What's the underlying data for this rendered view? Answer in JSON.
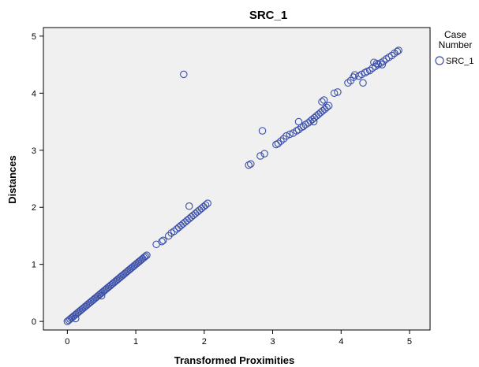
{
  "chart_data": {
    "type": "scatter",
    "title": "SRC_1",
    "xlabel": "Transformed Proximities",
    "ylabel": "Distances",
    "xlim": [
      -0.35,
      5.3
    ],
    "ylim": [
      -0.15,
      5.15
    ],
    "x_ticks": [
      0,
      1,
      2,
      3,
      4,
      5
    ],
    "y_ticks": [
      0,
      1,
      2,
      3,
      4,
      5
    ],
    "x_tick_labels": [
      "0",
      "1",
      "2",
      "3",
      "4",
      "5"
    ],
    "y_tick_labels": [
      "0",
      "1",
      "2",
      "3",
      "4",
      "5"
    ],
    "grid": false,
    "legend": {
      "title_lines": [
        "Case",
        "Number"
      ],
      "placement": "right",
      "entries": [
        "SRC_1"
      ]
    },
    "series": [
      {
        "name": "SRC_1",
        "color": "#3b4fa8",
        "marker": "open-circle",
        "points": [
          [
            0.0,
            0.0
          ],
          [
            0.02,
            0.02
          ],
          [
            0.04,
            0.04
          ],
          [
            0.06,
            0.06
          ],
          [
            0.08,
            0.08
          ],
          [
            0.1,
            0.1
          ],
          [
            0.12,
            0.12
          ],
          [
            0.14,
            0.14
          ],
          [
            0.16,
            0.16
          ],
          [
            0.18,
            0.18
          ],
          [
            0.2,
            0.2
          ],
          [
            0.22,
            0.22
          ],
          [
            0.24,
            0.24
          ],
          [
            0.26,
            0.26
          ],
          [
            0.28,
            0.28
          ],
          [
            0.3,
            0.3
          ],
          [
            0.32,
            0.32
          ],
          [
            0.34,
            0.34
          ],
          [
            0.36,
            0.36
          ],
          [
            0.38,
            0.38
          ],
          [
            0.4,
            0.4
          ],
          [
            0.42,
            0.42
          ],
          [
            0.44,
            0.44
          ],
          [
            0.46,
            0.46
          ],
          [
            0.48,
            0.48
          ],
          [
            0.5,
            0.5
          ],
          [
            0.52,
            0.52
          ],
          [
            0.54,
            0.54
          ],
          [
            0.56,
            0.56
          ],
          [
            0.58,
            0.58
          ],
          [
            0.6,
            0.6
          ],
          [
            0.62,
            0.62
          ],
          [
            0.64,
            0.64
          ],
          [
            0.66,
            0.66
          ],
          [
            0.68,
            0.68
          ],
          [
            0.7,
            0.7
          ],
          [
            0.72,
            0.72
          ],
          [
            0.74,
            0.74
          ],
          [
            0.76,
            0.76
          ],
          [
            0.78,
            0.78
          ],
          [
            0.8,
            0.8
          ],
          [
            0.82,
            0.82
          ],
          [
            0.84,
            0.84
          ],
          [
            0.86,
            0.86
          ],
          [
            0.88,
            0.88
          ],
          [
            0.9,
            0.9
          ],
          [
            0.92,
            0.92
          ],
          [
            0.94,
            0.94
          ],
          [
            0.96,
            0.96
          ],
          [
            0.98,
            0.98
          ],
          [
            1.0,
            1.0
          ],
          [
            1.02,
            1.02
          ],
          [
            1.04,
            1.04
          ],
          [
            1.06,
            1.06
          ],
          [
            1.08,
            1.08
          ],
          [
            1.1,
            1.1
          ],
          [
            1.12,
            1.12
          ],
          [
            1.14,
            1.14
          ],
          [
            1.16,
            1.16
          ],
          [
            0.12,
            0.05
          ],
          [
            0.5,
            0.45
          ],
          [
            1.3,
            1.35
          ],
          [
            1.38,
            1.4
          ],
          [
            1.4,
            1.42
          ],
          [
            1.48,
            1.5
          ],
          [
            1.52,
            1.55
          ],
          [
            1.56,
            1.58
          ],
          [
            1.6,
            1.62
          ],
          [
            1.63,
            1.65
          ],
          [
            1.66,
            1.68
          ],
          [
            1.69,
            1.71
          ],
          [
            1.72,
            1.74
          ],
          [
            1.75,
            1.77
          ],
          [
            1.78,
            1.8
          ],
          [
            1.81,
            1.83
          ],
          [
            1.84,
            1.86
          ],
          [
            1.87,
            1.89
          ],
          [
            1.9,
            1.92
          ],
          [
            1.93,
            1.95
          ],
          [
            1.96,
            1.98
          ],
          [
            1.99,
            2.01
          ],
          [
            2.02,
            2.04
          ],
          [
            2.05,
            2.07
          ],
          [
            1.78,
            2.02
          ],
          [
            1.7,
            4.33
          ],
          [
            2.65,
            2.74
          ],
          [
            2.68,
            2.76
          ],
          [
            2.82,
            2.9
          ],
          [
            2.88,
            2.94
          ],
          [
            2.85,
            3.34
          ],
          [
            3.05,
            3.1
          ],
          [
            3.08,
            3.12
          ],
          [
            3.12,
            3.16
          ],
          [
            3.16,
            3.2
          ],
          [
            3.2,
            3.25
          ],
          [
            3.25,
            3.28
          ],
          [
            3.3,
            3.3
          ],
          [
            3.35,
            3.34
          ],
          [
            3.38,
            3.36
          ],
          [
            3.42,
            3.4
          ],
          [
            3.45,
            3.42
          ],
          [
            3.48,
            3.45
          ],
          [
            3.52,
            3.48
          ],
          [
            3.55,
            3.51
          ],
          [
            3.58,
            3.54
          ],
          [
            3.61,
            3.57
          ],
          [
            3.64,
            3.6
          ],
          [
            3.67,
            3.63
          ],
          [
            3.7,
            3.66
          ],
          [
            3.73,
            3.69
          ],
          [
            3.76,
            3.72
          ],
          [
            3.79,
            3.75
          ],
          [
            3.82,
            3.78
          ],
          [
            3.38,
            3.5
          ],
          [
            3.6,
            3.5
          ],
          [
            3.72,
            3.85
          ],
          [
            3.75,
            3.88
          ],
          [
            3.9,
            4.0
          ],
          [
            3.95,
            4.02
          ],
          [
            4.1,
            4.18
          ],
          [
            4.14,
            4.22
          ],
          [
            4.18,
            4.28
          ],
          [
            4.2,
            4.32
          ],
          [
            4.26,
            4.3
          ],
          [
            4.32,
            4.18
          ],
          [
            4.3,
            4.33
          ],
          [
            4.35,
            4.36
          ],
          [
            4.38,
            4.38
          ],
          [
            4.42,
            4.4
          ],
          [
            4.46,
            4.44
          ],
          [
            4.5,
            4.47
          ],
          [
            4.54,
            4.5
          ],
          [
            4.58,
            4.53
          ],
          [
            4.62,
            4.56
          ],
          [
            4.66,
            4.6
          ],
          [
            4.7,
            4.63
          ],
          [
            4.74,
            4.66
          ],
          [
            4.78,
            4.7
          ],
          [
            4.82,
            4.73
          ],
          [
            4.84,
            4.75
          ],
          [
            4.6,
            4.5
          ],
          [
            4.52,
            4.52
          ],
          [
            4.48,
            4.54
          ]
        ]
      }
    ]
  }
}
